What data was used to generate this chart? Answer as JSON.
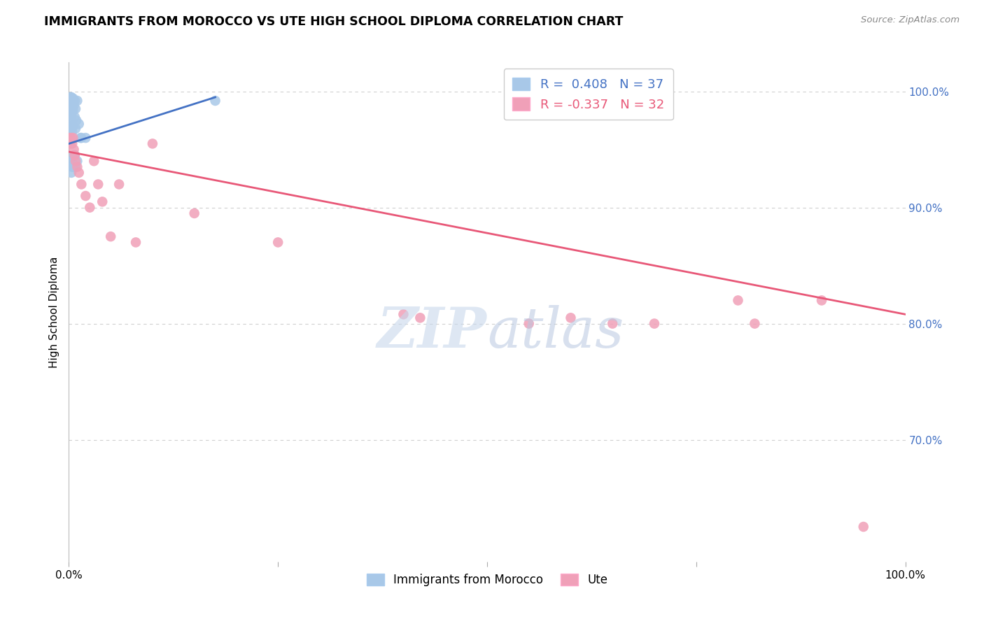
{
  "title": "IMMIGRANTS FROM MOROCCO VS UTE HIGH SCHOOL DIPLOMA CORRELATION CHART",
  "source": "Source: ZipAtlas.com",
  "ylabel": "High School Diploma",
  "ytick_labels": [
    "100.0%",
    "90.0%",
    "80.0%",
    "70.0%"
  ],
  "ytick_values": [
    1.0,
    0.9,
    0.8,
    0.7
  ],
  "xlim": [
    0.0,
    1.0
  ],
  "ylim": [
    0.595,
    1.025
  ],
  "legend_blue_r": "0.408",
  "legend_blue_n": "37",
  "legend_pink_r": "-0.337",
  "legend_pink_n": "32",
  "blue_scatter_x": [
    0.001,
    0.001,
    0.001,
    0.002,
    0.002,
    0.002,
    0.002,
    0.003,
    0.003,
    0.003,
    0.004,
    0.004,
    0.004,
    0.005,
    0.005,
    0.005,
    0.006,
    0.007,
    0.007,
    0.008,
    0.008,
    0.009,
    0.01,
    0.012,
    0.014,
    0.002,
    0.003,
    0.003,
    0.004,
    0.005,
    0.006,
    0.007,
    0.008,
    0.01,
    0.015,
    0.02,
    0.175
  ],
  "blue_scatter_y": [
    0.99,
    0.98,
    0.97,
    0.995,
    0.988,
    0.978,
    0.968,
    0.995,
    0.985,
    0.975,
    0.992,
    0.982,
    0.965,
    0.994,
    0.984,
    0.97,
    0.988,
    0.992,
    0.978,
    0.985,
    0.968,
    0.975,
    0.992,
    0.972,
    0.96,
    0.94,
    0.94,
    0.93,
    0.935,
    0.935,
    0.945,
    0.945,
    0.935,
    0.94,
    0.96,
    0.96,
    0.992
  ],
  "pink_scatter_x": [
    0.001,
    0.002,
    0.003,
    0.004,
    0.005,
    0.006,
    0.007,
    0.008,
    0.01,
    0.012,
    0.015,
    0.02,
    0.025,
    0.03,
    0.035,
    0.04,
    0.05,
    0.06,
    0.08,
    0.1,
    0.15,
    0.25,
    0.4,
    0.42,
    0.55,
    0.6,
    0.65,
    0.7,
    0.8,
    0.82,
    0.9,
    0.95
  ],
  "pink_scatter_y": [
    0.96,
    0.955,
    0.96,
    0.955,
    0.96,
    0.95,
    0.945,
    0.94,
    0.935,
    0.93,
    0.92,
    0.91,
    0.9,
    0.94,
    0.92,
    0.905,
    0.875,
    0.92,
    0.87,
    0.955,
    0.895,
    0.87,
    0.808,
    0.805,
    0.8,
    0.805,
    0.8,
    0.8,
    0.82,
    0.8,
    0.82,
    0.625
  ],
  "blue_line_x0": 0.0,
  "blue_line_x1": 0.175,
  "blue_line_y0": 0.955,
  "blue_line_y1": 0.995,
  "pink_line_x0": 0.0,
  "pink_line_x1": 1.0,
  "pink_line_y0": 0.948,
  "pink_line_y1": 0.808,
  "blue_color": "#a8c8e8",
  "pink_color": "#f0a0b8",
  "blue_line_color": "#4472c4",
  "pink_line_color": "#e85878",
  "blue_legend_color": "#4472c4",
  "pink_legend_color": "#e85878",
  "watermark_zip_color": "#c8d8ec",
  "watermark_atlas_color": "#b8c8e0",
  "background_color": "#ffffff",
  "grid_color": "#d0d0d0"
}
